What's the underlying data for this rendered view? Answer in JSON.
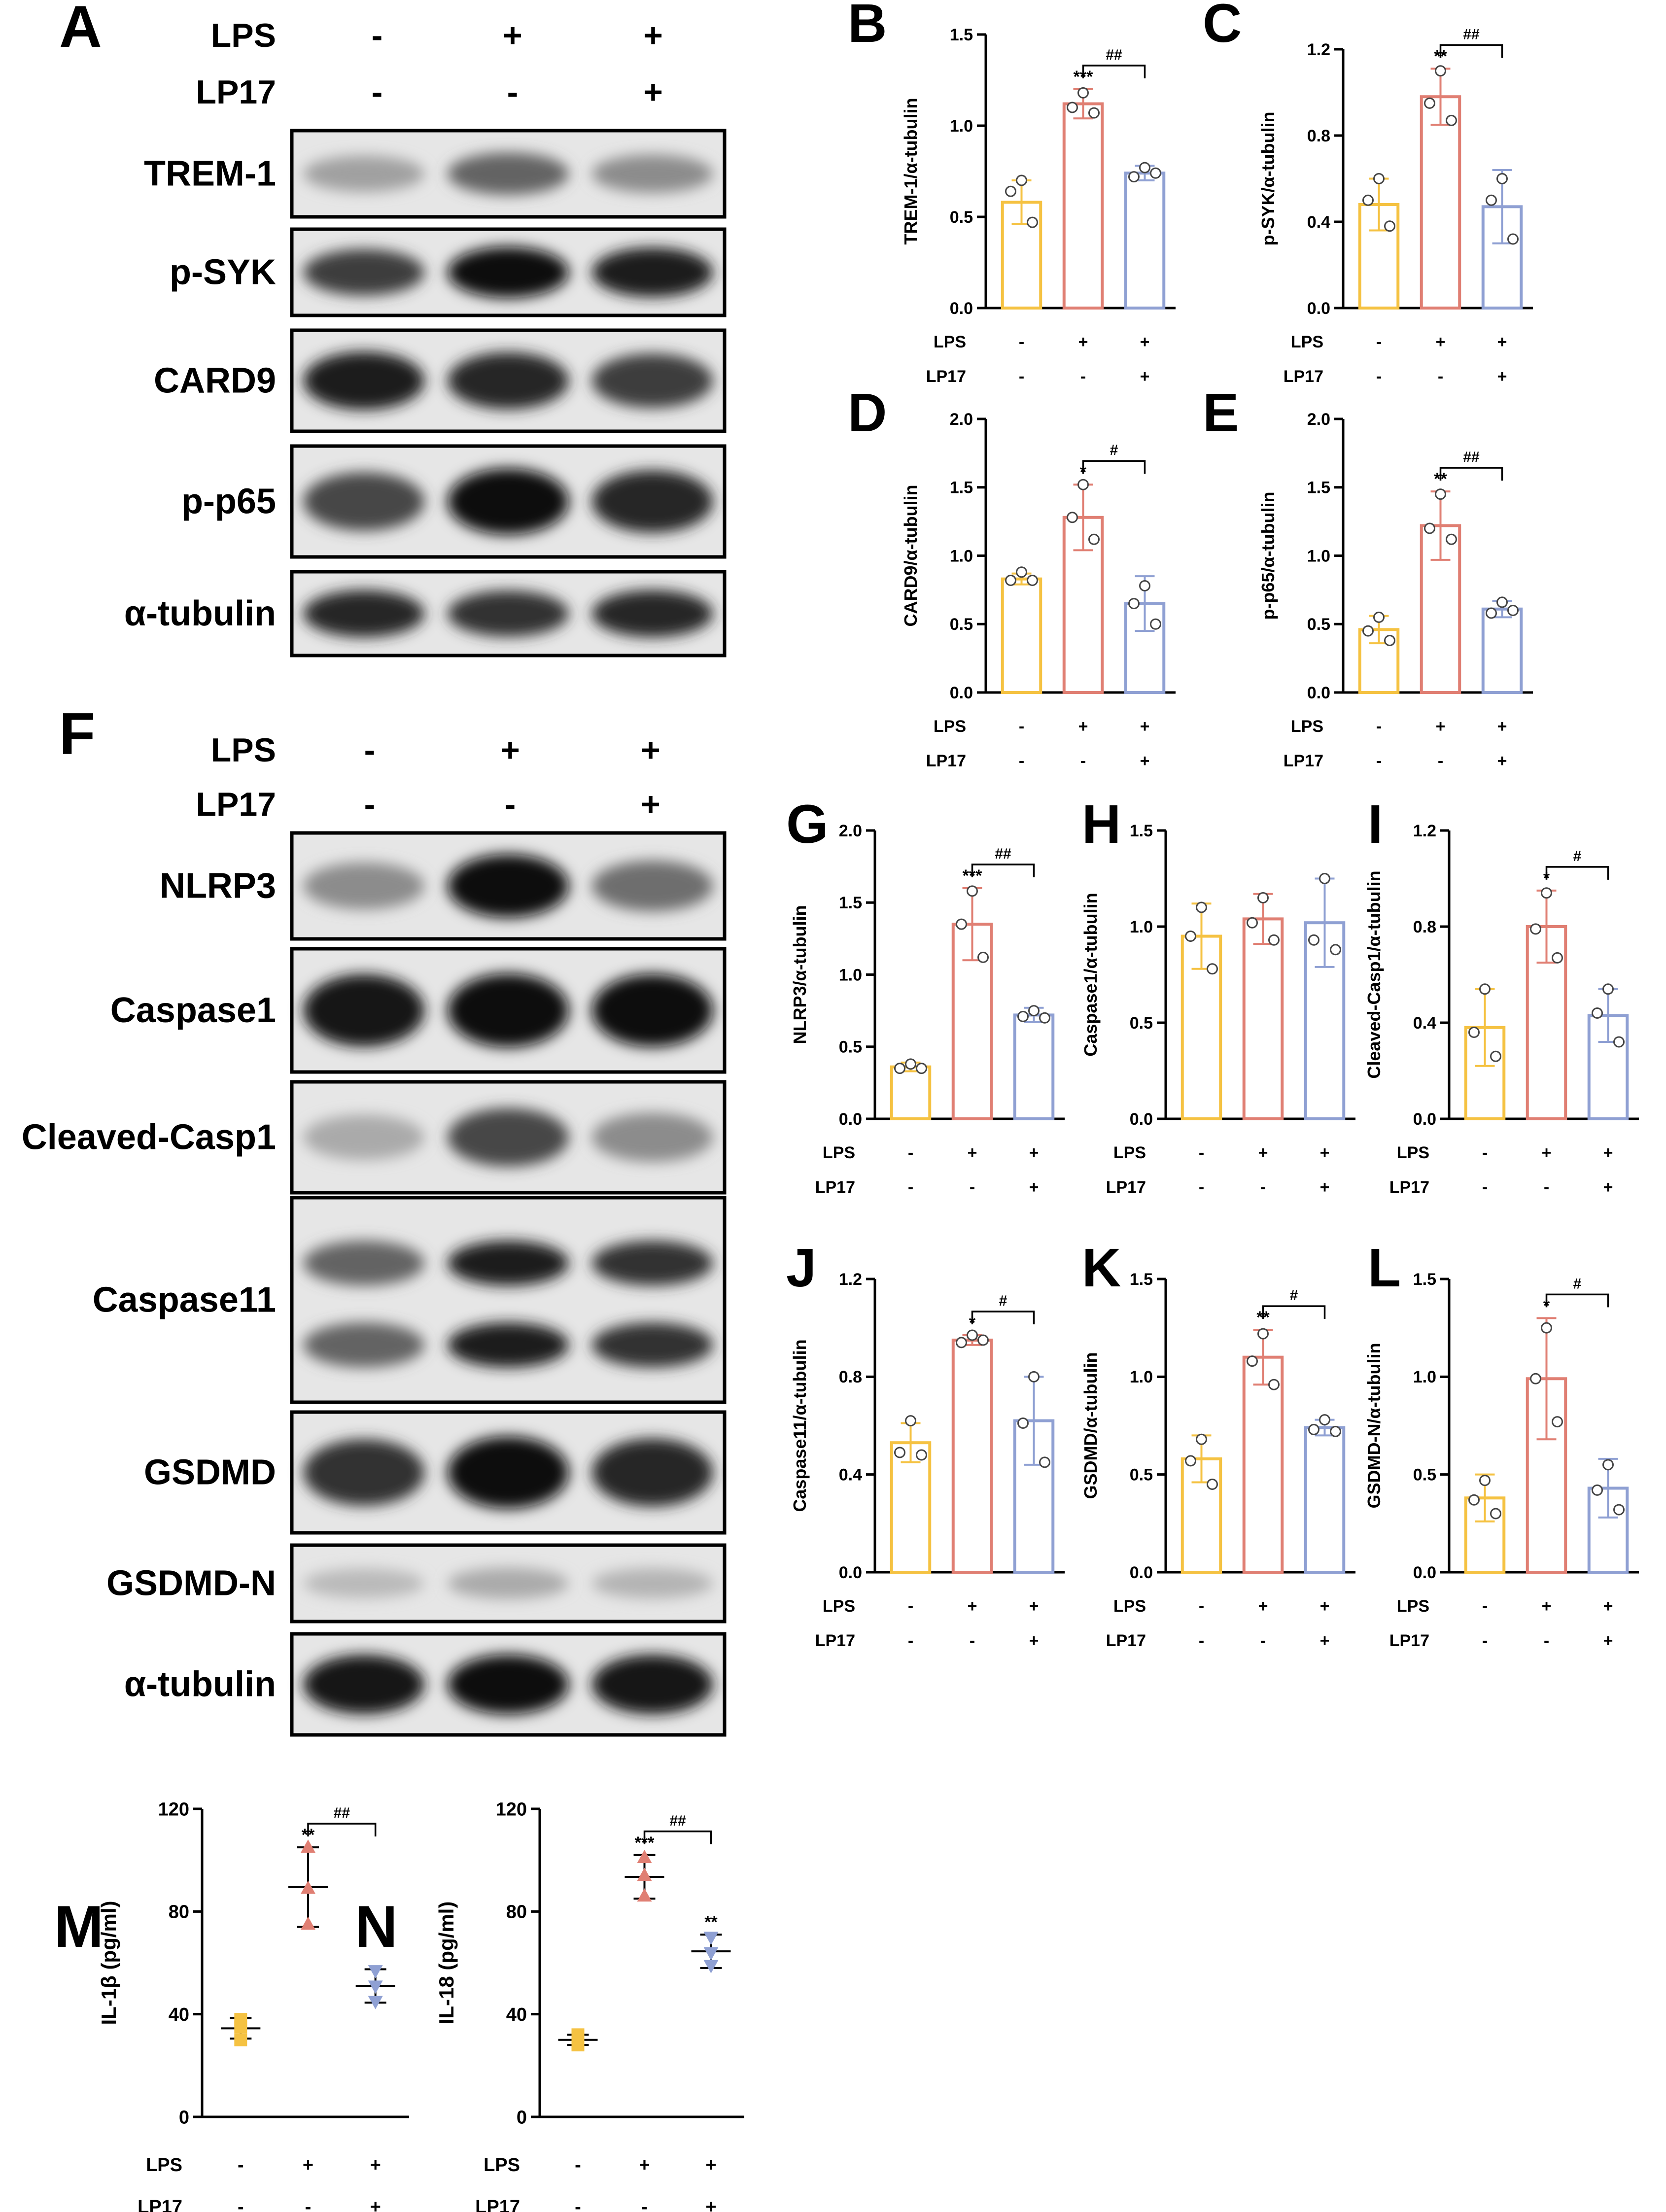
{
  "colors": {
    "ctrl": "#f5c242",
    "lps": "#e07f73",
    "lp17": "#8fa0d3",
    "axis": "#000000"
  },
  "blots": [
    {
      "panel": "A",
      "row_labels": [
        "LPS",
        "LP17"
      ],
      "rows": [
        [
          "-",
          "+",
          "+"
        ],
        [
          "-",
          "-",
          "+"
        ]
      ],
      "bands": [
        {
          "name": "TREM-1",
          "intensity": [
            0.25,
            0.55,
            0.35
          ]
        },
        {
          "name": "p-SYK",
          "intensity": [
            0.75,
            0.98,
            0.9
          ]
        },
        {
          "name": "CARD9",
          "intensity": [
            0.9,
            0.85,
            0.75
          ]
        },
        {
          "name": "p-p65",
          "intensity": [
            0.7,
            1.0,
            0.85
          ]
        },
        {
          "name": "α-tubulin",
          "intensity": [
            0.85,
            0.8,
            0.85
          ]
        }
      ]
    },
    {
      "panel": "F",
      "row_labels": [
        "LPS",
        "LP17"
      ],
      "rows": [
        [
          "-",
          "+",
          "+"
        ],
        [
          "-",
          "-",
          "+"
        ]
      ],
      "bands": [
        {
          "name": "NLRP3",
          "intensity": [
            0.35,
            1.0,
            0.5
          ]
        },
        {
          "name": "Caspase1",
          "intensity": [
            0.95,
            1.0,
            0.97
          ]
        },
        {
          "name": "Cleaved-Casp1",
          "intensity": [
            0.2,
            0.7,
            0.35
          ]
        },
        {
          "name": "Caspase11",
          "intensity": [
            0.55,
            0.9,
            0.8
          ]
        },
        {
          "name": "GSDMD",
          "intensity": [
            0.8,
            1.0,
            0.85
          ]
        },
        {
          "name": "GSDMD-N",
          "intensity": [
            0.12,
            0.2,
            0.15
          ]
        },
        {
          "name": "α-tubulin",
          "intensity": [
            0.95,
            0.97,
            0.96
          ]
        }
      ]
    }
  ],
  "chart_data": [
    {
      "panel": "B",
      "type": "bar",
      "ylabel": "TREM-1/α-tubulin",
      "ylim": [
        0,
        1.5
      ],
      "yticks": [
        "0.0",
        "0.5",
        "1.0",
        "1.5"
      ],
      "categories": [
        "-/-",
        "+/-",
        "+/+"
      ],
      "row_labels": [
        "LPS",
        "LP17"
      ],
      "rows": [
        [
          "-",
          "+",
          "+"
        ],
        [
          "-",
          "-",
          "+"
        ]
      ],
      "values": [
        0.58,
        1.12,
        0.74
      ],
      "errors": [
        0.12,
        0.08,
        0.04
      ],
      "points": [
        [
          0.7,
          0.64,
          0.47
        ],
        [
          1.18,
          1.1,
          1.07
        ],
        [
          0.77,
          0.72,
          0.74
        ]
      ],
      "stars": [
        "",
        "***",
        ""
      ],
      "bracket": {
        "from": 1,
        "to": 2,
        "label": "##"
      }
    },
    {
      "panel": "C",
      "type": "bar",
      "ylabel": "p-SYK/α-tubulin",
      "ylim": [
        0,
        1.2
      ],
      "yticks": [
        "0.0",
        "0.4",
        "0.8",
        "1.2"
      ],
      "categories": [
        "-/-",
        "+/-",
        "+/+"
      ],
      "row_labels": [
        "LPS",
        "LP17"
      ],
      "rows": [
        [
          "-",
          "+",
          "+"
        ],
        [
          "-",
          "-",
          "+"
        ]
      ],
      "values": [
        0.48,
        0.98,
        0.47
      ],
      "errors": [
        0.12,
        0.13,
        0.17
      ],
      "points": [
        [
          0.6,
          0.5,
          0.38
        ],
        [
          1.1,
          0.95,
          0.87
        ],
        [
          0.6,
          0.5,
          0.32
        ]
      ],
      "stars": [
        "",
        "**",
        ""
      ],
      "bracket": {
        "from": 1,
        "to": 2,
        "label": "##"
      }
    },
    {
      "panel": "D",
      "type": "bar",
      "ylabel": "CARD9/α-tubulin",
      "ylim": [
        0,
        2.0
      ],
      "yticks": [
        "0.0",
        "0.5",
        "1.0",
        "1.5",
        "2.0"
      ],
      "categories": [
        "-/-",
        "+/-",
        "+/+"
      ],
      "row_labels": [
        "LPS",
        "LP17"
      ],
      "rows": [
        [
          "-",
          "+",
          "+"
        ],
        [
          "-",
          "-",
          "+"
        ]
      ],
      "values": [
        0.83,
        1.28,
        0.65
      ],
      "errors": [
        0.04,
        0.24,
        0.2
      ],
      "points": [
        [
          0.88,
          0.82,
          0.82
        ],
        [
          1.52,
          1.28,
          1.12
        ],
        [
          0.78,
          0.65,
          0.5
        ]
      ],
      "stars": [
        "",
        "*",
        ""
      ],
      "bracket": {
        "from": 1,
        "to": 2,
        "label": "#"
      }
    },
    {
      "panel": "E",
      "type": "bar",
      "ylabel": "p-p65/α-tubulin",
      "ylim": [
        0,
        2.0
      ],
      "yticks": [
        "0.0",
        "0.5",
        "1.0",
        "1.5",
        "2.0"
      ],
      "categories": [
        "-/-",
        "+/-",
        "+/+"
      ],
      "row_labels": [
        "LPS",
        "LP17"
      ],
      "rows": [
        [
          "-",
          "+",
          "+"
        ],
        [
          "-",
          "-",
          "+"
        ]
      ],
      "values": [
        0.46,
        1.22,
        0.61
      ],
      "errors": [
        0.1,
        0.25,
        0.06
      ],
      "points": [
        [
          0.55,
          0.45,
          0.38
        ],
        [
          1.45,
          1.2,
          1.12
        ],
        [
          0.66,
          0.58,
          0.6
        ]
      ],
      "stars": [
        "",
        "**",
        ""
      ],
      "bracket": {
        "from": 1,
        "to": 2,
        "label": "##"
      }
    },
    {
      "panel": "G",
      "type": "bar",
      "ylabel": "NLRP3/α-tubulin",
      "ylim": [
        0,
        2.0
      ],
      "yticks": [
        "0.0",
        "0.5",
        "1.0",
        "1.5",
        "2.0"
      ],
      "categories": [
        "-/-",
        "+/-",
        "+/+"
      ],
      "row_labels": [
        "LPS",
        "LP17"
      ],
      "rows": [
        [
          "-",
          "+",
          "+"
        ],
        [
          "-",
          "-",
          "+"
        ]
      ],
      "values": [
        0.36,
        1.35,
        0.72
      ],
      "errors": [
        0.03,
        0.25,
        0.05
      ],
      "points": [
        [
          0.38,
          0.35,
          0.35
        ],
        [
          1.58,
          1.35,
          1.12
        ],
        [
          0.75,
          0.71,
          0.7
        ]
      ],
      "stars": [
        "",
        "***",
        ""
      ],
      "bracket": {
        "from": 1,
        "to": 2,
        "label": "##"
      }
    },
    {
      "panel": "H",
      "type": "bar",
      "ylabel": "Caspase1/α-tubulin",
      "ylim": [
        0,
        1.5
      ],
      "yticks": [
        "0.0",
        "0.5",
        "1.0",
        "1.5"
      ],
      "categories": [
        "-/-",
        "+/-",
        "+/+"
      ],
      "row_labels": [
        "LPS",
        "LP17"
      ],
      "rows": [
        [
          "-",
          "+",
          "+"
        ],
        [
          "-",
          "-",
          "+"
        ]
      ],
      "values": [
        0.95,
        1.04,
        1.02
      ],
      "errors": [
        0.17,
        0.13,
        0.23
      ],
      "points": [
        [
          1.1,
          0.95,
          0.78
        ],
        [
          1.15,
          1.02,
          0.93
        ],
        [
          1.25,
          0.93,
          0.88
        ]
      ],
      "stars": [
        "",
        "",
        ""
      ],
      "bracket": null
    },
    {
      "panel": "I",
      "type": "bar",
      "ylabel": "Cleaved-Casp1/α-tubulin",
      "ylim": [
        0,
        1.2
      ],
      "yticks": [
        "0.0",
        "0.4",
        "0.8",
        "1.2"
      ],
      "categories": [
        "-/-",
        "+/-",
        "+/+"
      ],
      "row_labels": [
        "LPS",
        "LP17"
      ],
      "rows": [
        [
          "-",
          "+",
          "+"
        ],
        [
          "-",
          "-",
          "+"
        ]
      ],
      "values": [
        0.38,
        0.8,
        0.43
      ],
      "errors": [
        0.16,
        0.15,
        0.11
      ],
      "points": [
        [
          0.54,
          0.36,
          0.26
        ],
        [
          0.94,
          0.79,
          0.67
        ],
        [
          0.54,
          0.44,
          0.32
        ]
      ],
      "stars": [
        "",
        "*",
        ""
      ],
      "bracket": {
        "from": 1,
        "to": 2,
        "label": "#"
      }
    },
    {
      "panel": "J",
      "type": "bar",
      "ylabel": "Caspase11/α-tubulin",
      "ylim": [
        0,
        1.2
      ],
      "yticks": [
        "0.0",
        "0.4",
        "0.8",
        "1.2"
      ],
      "categories": [
        "-/-",
        "+/-",
        "+/+"
      ],
      "row_labels": [
        "LPS",
        "LP17"
      ],
      "rows": [
        [
          "-",
          "+",
          "+"
        ],
        [
          "-",
          "-",
          "+"
        ]
      ],
      "values": [
        0.53,
        0.95,
        0.62
      ],
      "errors": [
        0.08,
        0.02,
        0.18
      ],
      "points": [
        [
          0.62,
          0.49,
          0.48
        ],
        [
          0.97,
          0.94,
          0.95
        ],
        [
          0.8,
          0.61,
          0.45
        ]
      ],
      "stars": [
        "",
        "*",
        ""
      ],
      "bracket": {
        "from": 1,
        "to": 2,
        "label": "#"
      }
    },
    {
      "panel": "K",
      "type": "bar",
      "ylabel": "GSDMD/α-tubulin",
      "ylim": [
        0,
        1.5
      ],
      "yticks": [
        "0.0",
        "0.5",
        "1.0",
        "1.5"
      ],
      "categories": [
        "-/-",
        "+/-",
        "+/+"
      ],
      "row_labels": [
        "LPS",
        "LP17"
      ],
      "rows": [
        [
          "-",
          "+",
          "+"
        ],
        [
          "-",
          "-",
          "+"
        ]
      ],
      "values": [
        0.58,
        1.1,
        0.74
      ],
      "errors": [
        0.12,
        0.14,
        0.04
      ],
      "points": [
        [
          0.68,
          0.57,
          0.45
        ],
        [
          1.22,
          1.08,
          0.96
        ],
        [
          0.78,
          0.73,
          0.72
        ]
      ],
      "stars": [
        "",
        "**",
        ""
      ],
      "bracket": {
        "from": 1,
        "to": 2,
        "label": "#"
      }
    },
    {
      "panel": "L",
      "type": "bar",
      "ylabel": "GSDMD-N/α-tubulin",
      "ylim": [
        0,
        1.5
      ],
      "yticks": [
        "0.0",
        "0.5",
        "1.0",
        "1.5"
      ],
      "categories": [
        "-/-",
        "+/-",
        "+/+"
      ],
      "row_labels": [
        "LPS",
        "LP17"
      ],
      "rows": [
        [
          "-",
          "+",
          "+"
        ],
        [
          "-",
          "-",
          "+"
        ]
      ],
      "values": [
        0.38,
        0.99,
        0.43
      ],
      "errors": [
        0.12,
        0.31,
        0.15
      ],
      "points": [
        [
          0.47,
          0.37,
          0.3
        ],
        [
          1.25,
          0.99,
          0.77
        ],
        [
          0.55,
          0.42,
          0.32
        ]
      ],
      "stars": [
        "",
        "*",
        ""
      ],
      "bracket": {
        "from": 1,
        "to": 2,
        "label": "#"
      }
    },
    {
      "panel": "M",
      "type": "scatter",
      "ylabel": "IL-1β (pg/ml)",
      "ylim": [
        0,
        120
      ],
      "yticks": [
        "0",
        "40",
        "80",
        "120"
      ],
      "categories": [
        "-/-",
        "+/-",
        "+/+"
      ],
      "row_labels": [
        "LPS",
        "LP17"
      ],
      "rows": [
        [
          "-",
          "+",
          "+"
        ],
        [
          "-",
          "-",
          "+"
        ]
      ],
      "values": [
        34.5,
        89.5,
        51
      ],
      "errors": [
        4,
        15.5,
        6.5
      ],
      "points": [
        [
          38,
          35,
          30
        ],
        [
          105,
          89,
          75
        ],
        [
          57,
          51,
          45
        ]
      ],
      "stars": [
        "",
        "**",
        ""
      ],
      "bracket": {
        "from": 1,
        "to": 2,
        "label": "##"
      }
    },
    {
      "panel": "N",
      "type": "scatter",
      "ylabel": "IL-18 (pg/ml)",
      "ylim": [
        0,
        120
      ],
      "yticks": [
        "0",
        "40",
        "80",
        "120"
      ],
      "categories": [
        "-/-",
        "+/-",
        "+/+"
      ],
      "row_labels": [
        "LPS",
        "LP17"
      ],
      "rows": [
        [
          "-",
          "+",
          "+"
        ],
        [
          "-",
          "-",
          "+"
        ]
      ],
      "values": [
        30,
        93.5,
        64.5
      ],
      "errors": [
        2,
        8.5,
        6.5
      ],
      "points": [
        [
          32,
          30,
          28
        ],
        [
          101,
          94,
          86
        ],
        [
          70,
          64,
          59
        ]
      ],
      "stars": [
        "",
        "***",
        "**"
      ],
      "bracket": {
        "from": 1,
        "to": 2,
        "label": "##"
      }
    }
  ]
}
